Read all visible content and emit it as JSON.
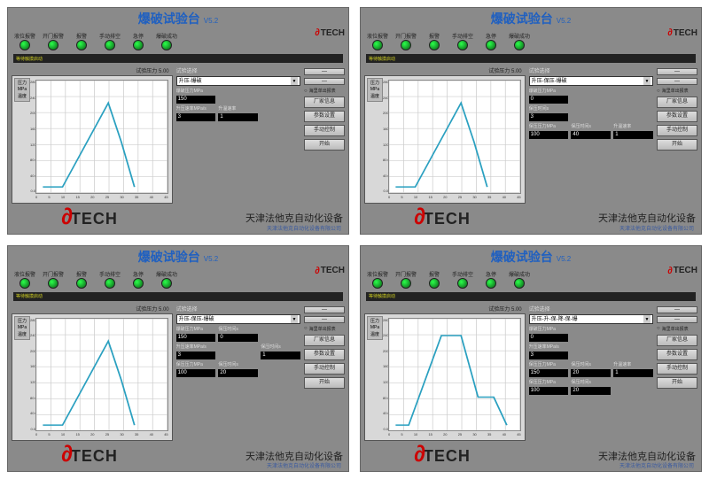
{
  "colors": {
    "panel_bg": "#8a8a8a",
    "title_color": "#2060c0",
    "led_green_light": "#2aff4a",
    "led_green_dark": "#0a5a15",
    "plot_bg": "#ffffff",
    "plot_line": "#2aa0c0",
    "val_bg": "#000000",
    "logo_red": "#cc0000"
  },
  "shared": {
    "title": "爆破试验台",
    "version": "V5.2",
    "leds": [
      {
        "label": "液位报警"
      },
      {
        "label": "开门报警"
      },
      {
        "label": "报警"
      },
      {
        "label": "手动排空"
      },
      {
        "label": "急停"
      },
      {
        "label": "爆破成功"
      }
    ],
    "logo_top": "TECH",
    "dark_bar_text": "等待触摸启动",
    "chart_side": {
      "l1": "压力",
      "l2": "MPa",
      "l3": "温度"
    },
    "pressure_label": "试验压力 5.00",
    "param_section_label": "试验选择",
    "y_ticks": [
      "280.0",
      "240.0",
      "200.0",
      "160.0",
      "120.0",
      "80.0",
      "40.0",
      "0.0"
    ],
    "x_ticks": [
      "0",
      "5",
      "10",
      "15",
      "20",
      "25",
      "30",
      "35",
      "40",
      "45"
    ],
    "footer_logo": "TECH",
    "footer_cn": "天津法他克自动化设备",
    "footer_sub": "天津法他克自动化设备有限公司",
    "radio_label": "海里单出报表",
    "buttons": {
      "b1": "—",
      "b2": "—",
      "b3": "厂家信息",
      "b4": "参数设置",
      "b5": "手动控制",
      "b6": "开始"
    }
  },
  "panels": [
    {
      "dropdown": "升压-爆破",
      "grid": [
        {
          "l1": "爆破压力MPa",
          "v1": "150",
          "l2": "",
          "v2": "",
          "l3": "",
          "v3": ""
        },
        {
          "l1": "升压速率MPa/s",
          "v1": "3",
          "l2": "升温速率",
          "v2": "1",
          "l3": "",
          "v3": ""
        }
      ],
      "poly": "5,95 20,95 55,20 65,55 75,95"
    },
    {
      "dropdown": "升压-保压-爆破",
      "grid": [
        {
          "l1": "爆破压力MPa",
          "v1": "0",
          "l2": "",
          "v2": "",
          "l3": "",
          "v3": ""
        },
        {
          "l1": "保压时间s",
          "v1": "3",
          "l2": "",
          "v2": "",
          "l3": "",
          "v3": ""
        },
        {
          "l1": "保压压力MPa",
          "v1": "100",
          "l2": "保压时间s",
          "v2": "40",
          "l3": "升温速率",
          "v3": "1"
        }
      ],
      "poly": "5,95 20,95 55,20 65,55 75,95"
    },
    {
      "dropdown": "升压-保压-爆破",
      "grid": [
        {
          "l1": "爆破压力MPa",
          "v1": "150",
          "l2": "保压时间s",
          "v2": "0",
          "l3": "",
          "v3": ""
        },
        {
          "l1": "升压速率MPa/s",
          "v1": "3",
          "l2": "",
          "v2": "",
          "l3": "保压时间s",
          "v3": "1"
        },
        {
          "l1": "保压压力MPa",
          "v1": "100",
          "l2": "保压时间s",
          "v2": "20",
          "l3": "",
          "v3": ""
        }
      ],
      "poly": "5,95 20,95 55,20 65,55 75,95"
    },
    {
      "dropdown": "升压-升-保-降-保-爆",
      "grid": [
        {
          "l1": "爆破压力MPa",
          "v1": "0",
          "l2": "",
          "v2": "",
          "l3": "",
          "v3": ""
        },
        {
          "l1": "升压速率MPa/s",
          "v1": "3",
          "l2": "",
          "v2": "",
          "l3": "",
          "v3": ""
        },
        {
          "l1": "保压压力MPa",
          "v1": "150",
          "l2": "保压时间s",
          "v2": "20",
          "l3": "升温速率",
          "v3": "1"
        },
        {
          "l1": "保压压力MPa",
          "v1": "100",
          "l2": "保压时间s",
          "v2": "20",
          "l3": "",
          "v3": ""
        }
      ],
      "poly": "5,95 15,95 40,15 55,15 68,70 80,70 90,95"
    }
  ]
}
